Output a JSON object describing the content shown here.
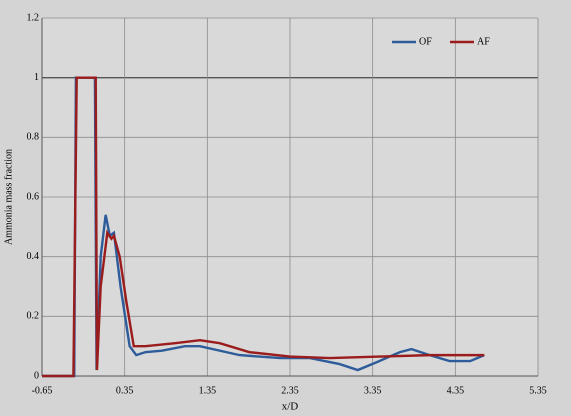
{
  "chart_data": {
    "type": "line",
    "xlabel": "x/D",
    "ylabel": "Ammonia mass fraction",
    "xlim": [
      -0.65,
      5.35
    ],
    "xticks": [
      -0.65,
      0.35,
      1.35,
      2.35,
      3.35,
      4.35,
      5.35
    ],
    "ylim": [
      0,
      1.2
    ],
    "yticks": [
      0,
      0.2,
      0.4,
      0.6,
      0.8,
      1,
      1.2
    ],
    "grid": true,
    "legend": "top-right",
    "series": [
      {
        "name": "OF",
        "color": "#2e5c9a",
        "x": [
          -0.65,
          -0.26,
          -0.24,
          -0.01,
          0.01,
          0.06,
          0.12,
          0.17,
          0.22,
          0.3,
          0.41,
          0.49,
          0.6,
          0.8,
          1.08,
          1.26,
          1.74,
          2.23,
          2.59,
          2.95,
          3.17,
          3.43,
          3.68,
          3.82,
          4.04,
          4.28,
          4.53,
          4.7
        ],
        "values": [
          0,
          0,
          1,
          1,
          0.02,
          0.4,
          0.54,
          0.47,
          0.48,
          0.3,
          0.1,
          0.07,
          0.08,
          0.085,
          0.1,
          0.1,
          0.07,
          0.06,
          0.06,
          0.04,
          0.02,
          0.05,
          0.08,
          0.09,
          0.07,
          0.05,
          0.05,
          0.07
        ]
      },
      {
        "name": "AF",
        "color": "#9b1c1c",
        "x": [
          -0.65,
          -0.27,
          -0.23,
          0.0,
          0.015,
          0.06,
          0.14,
          0.19,
          0.22,
          0.29,
          0.37,
          0.46,
          0.6,
          0.96,
          1.26,
          1.5,
          1.86,
          2.35,
          2.83,
          3.43,
          4.04,
          4.7
        ],
        "values": [
          0,
          0,
          1,
          1,
          0.02,
          0.3,
          0.48,
          0.46,
          0.47,
          0.4,
          0.25,
          0.1,
          0.1,
          0.11,
          0.12,
          0.11,
          0.08,
          0.065,
          0.06,
          0.065,
          0.07,
          0.07
        ]
      }
    ]
  }
}
